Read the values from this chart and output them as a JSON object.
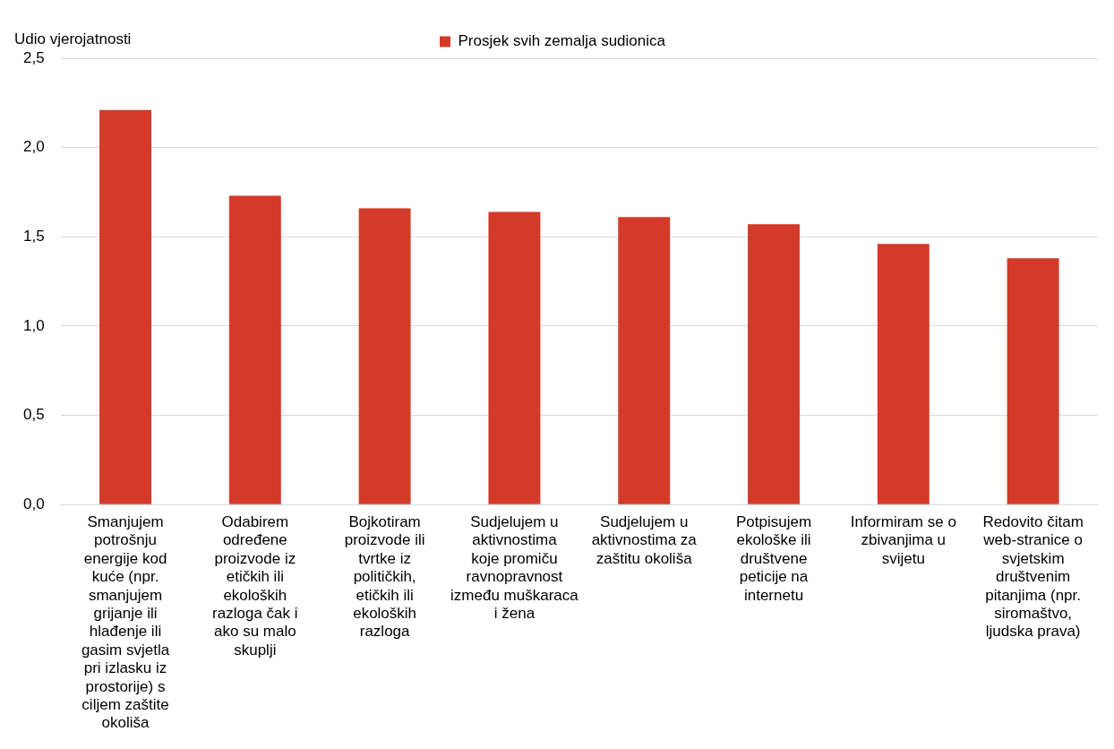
{
  "chart_data": {
    "type": "bar",
    "ylabel": "Udio vjerojatnosti",
    "categories": [
      "Smanjujem potrošnju energije kod kuće (npr. smanjujem grijanje ili hlađenje ili gasim svjetla pri izlasku iz prostorije) s ciljem zaštite okoliša",
      "Odabirem određene proizvode iz etičkih ili ekoloških razloga čak i ako su malo skuplji",
      "Bojkotiram proizvode ili tvrtke iz političkih, etičkih ili ekoloških razloga",
      "Sudjelujem u aktivnostima koje promiču ravnopravnost između muškaraca i žena",
      "Sudjelujem u aktivnostima za zaštitu okoliša",
      "Potpisujem ekološke ili društvene peticije na internetu",
      "Informiram se o zbivanjima u svijetu",
      "Redovito čitam web-stranice o svjetskim društvenim pitanjima (npr. siromaštvo, ljudska prava)"
    ],
    "series": [
      {
        "name": "Prosjek svih zemalja sudionica",
        "color": "#d33a29",
        "values": [
          2.21,
          1.73,
          1.66,
          1.64,
          1.61,
          1.57,
          1.46,
          1.38
        ]
      }
    ],
    "ylim": [
      0,
      2.5
    ],
    "yticks": [
      {
        "value": 0,
        "label": "0,0"
      },
      {
        "value": 0.5,
        "label": "0,5"
      },
      {
        "value": 1,
        "label": "1,0"
      },
      {
        "value": 1.5,
        "label": "1,5"
      },
      {
        "value": 2,
        "label": "2,0"
      },
      {
        "value": 2.5,
        "label": "2,5"
      }
    ],
    "grid": "y",
    "legend": "top"
  }
}
